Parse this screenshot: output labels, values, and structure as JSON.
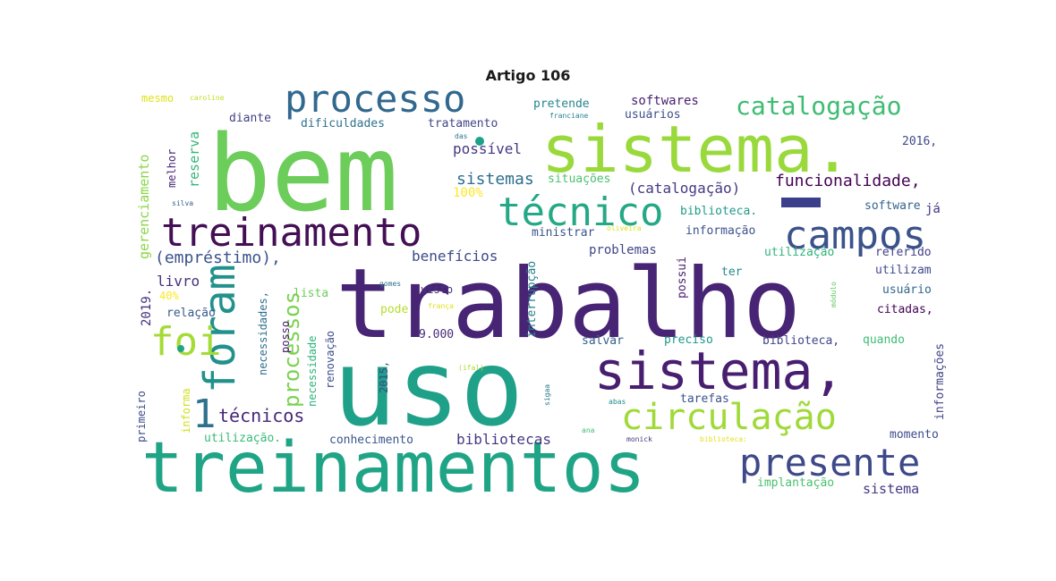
{
  "title": "Artigo 106",
  "words": [
    {
      "text": "bem",
      "color": "#6ccd5a"
    },
    {
      "text": "sistema.",
      "color": "#9ad93c"
    },
    {
      "text": "trabalho",
      "color": "#482475"
    },
    {
      "text": "uso",
      "color": "#1fa088"
    },
    {
      "text": "treinamentos",
      "color": "#20a486"
    },
    {
      "text": "processo",
      "color": "#31688e"
    },
    {
      "text": "treinamento",
      "color": "#440f55"
    },
    {
      "text": "técnico",
      "color": "#25a885"
    },
    {
      "text": "catalogação",
      "color": "#3fbc73"
    },
    {
      "text": "campos",
      "color": "#3b528b"
    },
    {
      "text": "sistema,",
      "color": "#481f70"
    },
    {
      "text": "foram",
      "color": "#21918c"
    },
    {
      "text": "foi",
      "color": "#a5db36"
    },
    {
      "text": "circulação",
      "color": "#a0da39"
    },
    {
      "text": "presente",
      "color": "#3e4989"
    },
    {
      "text": "1",
      "color": "#2d718e"
    },
    {
      "text": "técnicos",
      "color": "#482878"
    },
    {
      "text": "processos",
      "color": "#7ad151"
    },
    {
      "text": "funcionalidade,",
      "color": "#440154"
    },
    {
      "text": "(catalogação)",
      "color": "#443983"
    },
    {
      "text": "possível",
      "color": "#453781"
    },
    {
      "text": "sistemas",
      "color": "#2e6e8e"
    },
    {
      "text": "situações",
      "color": "#4ac16d"
    },
    {
      "text": "100%",
      "color": "#fde725"
    },
    {
      "text": "benefícios",
      "color": "#3e4a89"
    },
    {
      "text": "problemas",
      "color": "#404688"
    },
    {
      "text": "(empréstimo),",
      "color": "#3b528b"
    },
    {
      "text": "livro",
      "color": "#46327e"
    },
    {
      "text": "2019.",
      "color": "#472d7b"
    },
    {
      "text": "40%",
      "color": "#fde725"
    },
    {
      "text": "relação",
      "color": "#38598c"
    },
    {
      "text": "lista",
      "color": "#6ece58"
    },
    {
      "text": "pode",
      "color": "#b5de2b"
    },
    {
      "text": "visto",
      "color": "#46327e"
    },
    {
      "text": "gomes",
      "color": "#2c728e"
    },
    {
      "text": "frança",
      "color": "#dfe318"
    },
    {
      "text": "interrupção",
      "color": "#277f8e"
    },
    {
      "text": "possui",
      "color": "#481f70"
    },
    {
      "text": "9.000",
      "color": "#472d7b"
    },
    {
      "text": "salvar",
      "color": "#35608d"
    },
    {
      "text": "preciso",
      "color": "#1f978b"
    },
    {
      "text": "biblioteca,",
      "color": "#404688"
    },
    {
      "text": "quando",
      "color": "#3dbc74"
    },
    {
      "text": "tarefas",
      "color": "#3b528b"
    },
    {
      "text": "abas",
      "color": "#228c8d"
    },
    {
      "text": "sigaa",
      "color": "#2a788e"
    },
    {
      "text": "(ifal)",
      "color": "#addc30"
    },
    {
      "text": "ana",
      "color": "#3fbc73"
    },
    {
      "text": "monick",
      "color": "#443983"
    },
    {
      "text": "biblioteca:",
      "color": "#dfe318"
    },
    {
      "text": "bibliotecas",
      "color": "#453882"
    },
    {
      "text": "conhecimento",
      "color": "#39568c"
    },
    {
      "text": "utilização.",
      "color": "#3aba76"
    },
    {
      "text": "momento",
      "color": "#3e4c8a"
    },
    {
      "text": "implantação",
      "color": "#4ac16d"
    },
    {
      "text": "sistema",
      "color": "#443a83"
    },
    {
      "text": "informações",
      "color": "#414487"
    },
    {
      "text": "citadas,",
      "color": "#440154"
    },
    {
      "text": "usuário",
      "color": "#31678e"
    },
    {
      "text": "utilizam",
      "color": "#3e4989"
    },
    {
      "text": "referido",
      "color": "#424186"
    },
    {
      "text": "utilização",
      "color": "#2fb47c"
    },
    {
      "text": "módulo",
      "color": "#5ec962"
    },
    {
      "text": "ter",
      "color": "#23898e"
    },
    {
      "text": "informação",
      "color": "#3b528b"
    },
    {
      "text": "softwares",
      "color": "#481f70"
    },
    {
      "text": "usuários",
      "color": "#3d4d8a"
    },
    {
      "text": "pretende",
      "color": "#25848e"
    },
    {
      "text": "franciane",
      "color": "#26828e"
    },
    {
      "text": "das",
      "color": "#2c728e"
    },
    {
      "text": "oliveira",
      "color": "#d8e219"
    },
    {
      "text": "2016,",
      "color": "#3e4a89"
    },
    {
      "text": "já",
      "color": "#453781"
    },
    {
      "text": "software",
      "color": "#33638d"
    },
    {
      "text": "biblioteca.",
      "color": "#1f9a8a"
    },
    {
      "text": "ministrar",
      "color": "#3b528b"
    },
    {
      "text": "tratamento",
      "color": "#404588"
    },
    {
      "text": "dificuldades",
      "color": "#2d718e"
    },
    {
      "text": "diante",
      "color": "#424186"
    },
    {
      "text": "caroline",
      "color": "#c2df23"
    },
    {
      "text": "mesmo",
      "color": "#dde318"
    },
    {
      "text": "gerenciamento",
      "color": "#8bd646"
    },
    {
      "text": "reserva",
      "color": "#35b779"
    },
    {
      "text": "melhor",
      "color": "#482475"
    },
    {
      "text": "silva",
      "color": "#34618d"
    },
    {
      "text": "necessidades,",
      "color": "#2e6f8e"
    },
    {
      "text": "necessidade",
      "color": "#2db27d"
    },
    {
      "text": "renovação",
      "color": "#3d4e8a"
    },
    {
      "text": "posso",
      "color": "#481a6c"
    },
    {
      "text": "2015,",
      "color": "#3f4889"
    },
    {
      "text": "informa",
      "color": "#d0e11c"
    },
    {
      "text": "primeiro",
      "color": "#3e4c8a"
    }
  ]
}
